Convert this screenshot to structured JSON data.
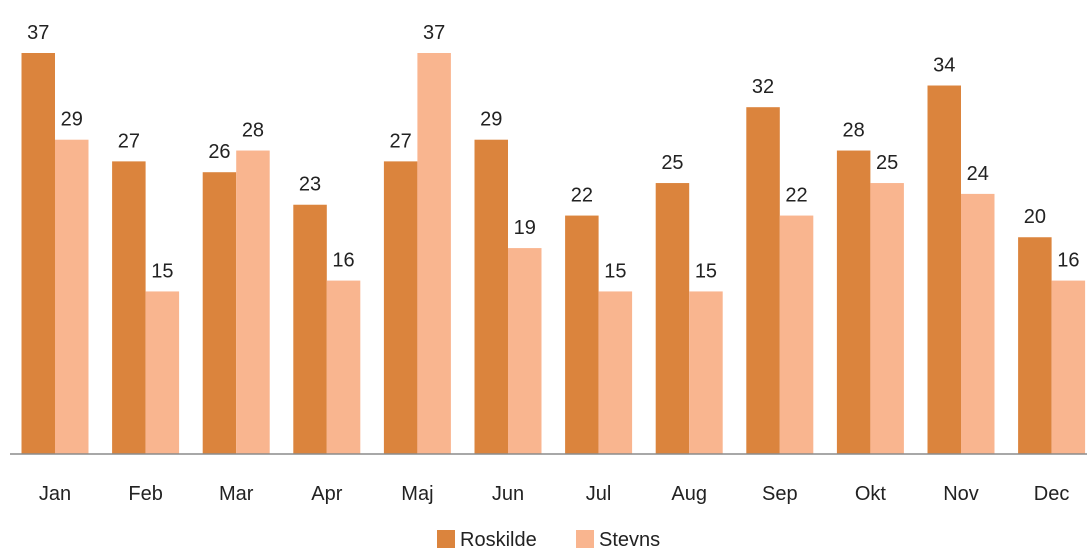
{
  "chart_data": {
    "type": "bar",
    "title": "",
    "xlabel": "",
    "ylabel": "",
    "categories": [
      "Jan",
      "Feb",
      "Mar",
      "Apr",
      "Maj",
      "Jun",
      "Jul",
      "Aug",
      "Sep",
      "Okt",
      "Nov",
      "Dec"
    ],
    "series": [
      {
        "name": "Roskilde",
        "color": "#DB843D",
        "values": [
          37,
          27,
          26,
          23,
          27,
          29,
          22,
          25,
          32,
          28,
          34,
          20
        ]
      },
      {
        "name": "Stevns",
        "color": "#F9B58F",
        "values": [
          29,
          15,
          28,
          16,
          37,
          19,
          15,
          15,
          22,
          25,
          24,
          16
        ]
      }
    ],
    "ylim": [
      0,
      37
    ],
    "grid": false,
    "data_labels": true,
    "legend_position": "bottom"
  },
  "colors": {
    "axis": "#8c8c8c",
    "text": "#222222"
  }
}
